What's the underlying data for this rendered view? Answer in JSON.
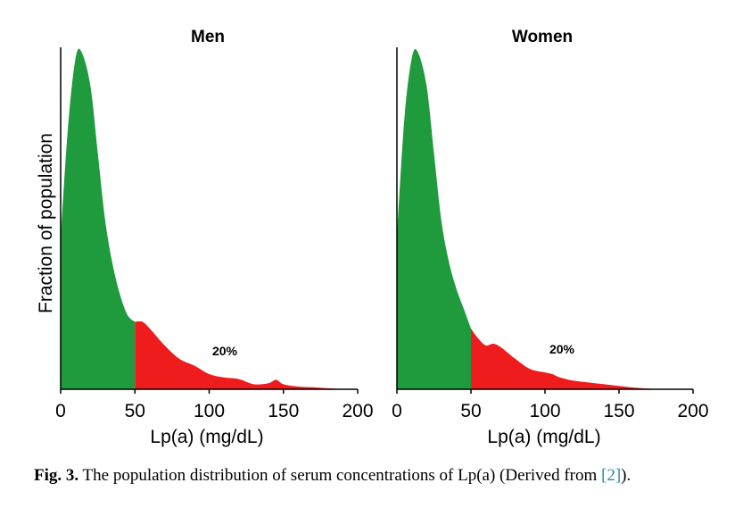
{
  "chart_data": [
    {
      "type": "area",
      "title": "Men",
      "xlabel": "Lp(a) (mg/dL)",
      "ylabel": "Fraction of population",
      "xlim": [
        0,
        200
      ],
      "xticks": [
        "0",
        "50",
        "100",
        "150",
        "200"
      ],
      "threshold": 50,
      "annotation": "20%",
      "colors": {
        "below": "#1f9a3c",
        "above": "#ee1c1c"
      },
      "x": [
        0,
        5,
        10,
        14,
        20,
        25,
        30,
        35,
        40,
        45,
        50,
        55,
        60,
        70,
        80,
        90,
        100,
        110,
        120,
        130,
        140,
        145,
        150,
        160,
        170,
        180,
        190,
        200
      ],
      "y": [
        0.45,
        0.78,
        0.98,
        1.0,
        0.9,
        0.7,
        0.5,
        0.37,
        0.28,
        0.22,
        0.2,
        0.2,
        0.18,
        0.13,
        0.09,
        0.07,
        0.045,
        0.035,
        0.03,
        0.015,
        0.018,
        0.028,
        0.015,
        0.008,
        0.006,
        0.003,
        0.001,
        0.0
      ]
    },
    {
      "type": "area",
      "title": "Women",
      "xlabel": "Lp(a) (mg/dL)",
      "ylabel": "",
      "xlim": [
        0,
        200
      ],
      "xticks": [
        "0",
        "50",
        "100",
        "150",
        "200"
      ],
      "threshold": 50,
      "annotation": "20%",
      "colors": {
        "below": "#1f9a3c",
        "above": "#ee1c1c"
      },
      "x": [
        0,
        5,
        10,
        14,
        20,
        25,
        30,
        35,
        40,
        45,
        50,
        55,
        60,
        65,
        70,
        80,
        90,
        100,
        105,
        110,
        120,
        130,
        140,
        150,
        160,
        170,
        180,
        190,
        200
      ],
      "y": [
        0.45,
        0.8,
        0.98,
        1.0,
        0.9,
        0.7,
        0.5,
        0.38,
        0.3,
        0.24,
        0.18,
        0.15,
        0.13,
        0.135,
        0.125,
        0.09,
        0.06,
        0.05,
        0.045,
        0.035,
        0.025,
        0.02,
        0.015,
        0.01,
        0.005,
        0.002,
        0.0,
        0.0,
        0.0
      ]
    }
  ],
  "caption": {
    "lead": "Fig. 3.",
    "text": " The population distribution of serum concentrations of Lp(a) (Derived from ",
    "ref": "[2]",
    "tail": ")."
  }
}
